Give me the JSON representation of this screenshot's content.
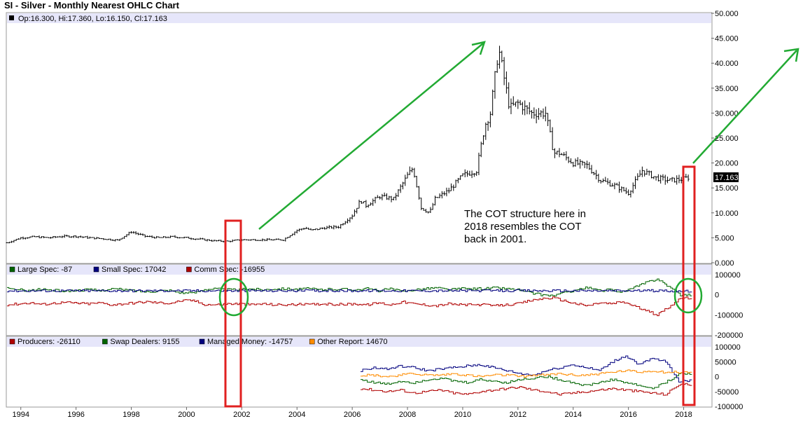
{
  "title": "SI - Silver - Monthly Nearest OHLC Chart",
  "annotation": "The COT structure here in 2018 resembles the COT back in 2001.",
  "chart_data": [
    {
      "type": "ohlc",
      "header": "Op:16.300, Hi:17.360, Lo:16.150, Cl:17.163",
      "last_value_label": "17.163",
      "x_ticks": [
        "1994",
        "1996",
        "1998",
        "2000",
        "2002",
        "2004",
        "2006",
        "2008",
        "2010",
        "2012",
        "2014",
        "2016",
        "2018"
      ],
      "y_ticks": [
        "0.000",
        "5.000",
        "10.000",
        "15.000",
        "20.000",
        "25.000",
        "30.000",
        "35.000",
        "40.000",
        "45.000",
        "50.000"
      ],
      "ylim": [
        0,
        50
      ],
      "xlim": [
        1993.5,
        2019.0
      ],
      "x": [
        1993.5,
        1994.0,
        1994.5,
        1995.0,
        1995.5,
        1996.0,
        1996.5,
        1997.0,
        1997.5,
        1998.0,
        1998.5,
        1999.0,
        1999.5,
        2000.0,
        2000.5,
        2001.0,
        2001.5,
        2002.0,
        2002.5,
        2003.0,
        2003.5,
        2004.0,
        2004.3,
        2004.5,
        2005.0,
        2005.5,
        2006.0,
        2006.3,
        2006.5,
        2007.0,
        2007.5,
        2008.0,
        2008.2,
        2008.5,
        2008.8,
        2009.0,
        2009.5,
        2010.0,
        2010.5,
        2010.8,
        2011.0,
        2011.3,
        2011.5,
        2011.7,
        2012.0,
        2012.5,
        2013.0,
        2013.3,
        2013.5,
        2014.0,
        2014.5,
        2015.0,
        2015.5,
        2016.0,
        2016.5,
        2017.0,
        2017.5,
        2018.0,
        2018.2
      ],
      "close": [
        4.0,
        5.0,
        5.2,
        5.0,
        5.3,
        5.3,
        5.0,
        4.8,
        4.5,
        6.2,
        5.3,
        5.0,
        5.2,
        5.0,
        4.7,
        4.4,
        4.3,
        4.6,
        4.6,
        4.6,
        4.6,
        6.5,
        7.0,
        6.5,
        7.0,
        7.2,
        9.5,
        12.5,
        11.5,
        13.3,
        12.8,
        17.5,
        19.0,
        11.0,
        10.0,
        12.8,
        14.5,
        17.5,
        18.5,
        27.5,
        30.0,
        43.0,
        37.0,
        31.0,
        32.0,
        30.0,
        30.0,
        22.0,
        22.0,
        20.0,
        19.5,
        16.5,
        15.5,
        14.0,
        18.5,
        17.0,
        16.5,
        16.8,
        17.163
      ],
      "cot_legacy": {
        "ylim": [
          -200000,
          100000
        ],
        "y_ticks": [
          "100000",
          "0",
          "-100000",
          "-200000"
        ],
        "series": [
          {
            "name": "Large Spec: -87",
            "color": "#006400",
            "values": [
              30000,
              25000,
              20000,
              28000,
              22000,
              18000,
              22000,
              25000,
              20000,
              30000,
              25000,
              20000,
              15000,
              20000,
              22000,
              10000,
              8000,
              28000,
              30000,
              25000,
              25000,
              30000,
              25000,
              30000,
              30000,
              28000,
              30000,
              25000,
              28000,
              28000,
              25000,
              30000,
              20000,
              30000,
              15000,
              25000,
              30000,
              35000,
              25000,
              30000,
              30000,
              30000,
              35000,
              30000,
              25000,
              10000,
              0,
              -5000,
              10000,
              25000,
              35000,
              20000,
              25000,
              15000,
              35000,
              60000,
              80000,
              40000,
              -87
            ]
          },
          {
            "name": "Small Spec: 17042",
            "color": "#00007f",
            "values": [
              20000,
              20000,
              20000,
              20000,
              20000,
              20000,
              20000,
              20000,
              20000,
              20000,
              20000,
              20000,
              20000,
              20000,
              20000,
              20000,
              20000,
              20000,
              20000,
              20000,
              20000,
              20000,
              20000,
              20000,
              20000,
              20000,
              20000,
              20000,
              20000,
              20000,
              20000,
              20000,
              20000,
              20000,
              20000,
              20000,
              20000,
              20000,
              20000,
              20000,
              20000,
              20000,
              20000,
              20000,
              20000,
              20000,
              20000,
              20000,
              20000,
              20000,
              20000,
              20000,
              20000,
              20000,
              20000,
              20000,
              20000,
              20000,
              17042
            ]
          },
          {
            "name": "Comm Spec: -16955",
            "color": "#b00000",
            "values": [
              -50000,
              -45000,
              -40000,
              -48000,
              -42000,
              -38000,
              -42000,
              -45000,
              -40000,
              -50000,
              -45000,
              -40000,
              -35000,
              -40000,
              -42000,
              -30000,
              -28000,
              -48000,
              -50000,
              -45000,
              -45000,
              -50000,
              -45000,
              -50000,
              -50000,
              -48000,
              -50000,
              -45000,
              -48000,
              -48000,
              -45000,
              -50000,
              -40000,
              -50000,
              -35000,
              -45000,
              -50000,
              -55000,
              -45000,
              -50000,
              -50000,
              -50000,
              -55000,
              -50000,
              -45000,
              -30000,
              -20000,
              -15000,
              -30000,
              -45000,
              -55000,
              -40000,
              -45000,
              -35000,
              -55000,
              -80000,
              -100000,
              -60000,
              -16955
            ]
          }
        ]
      },
      "cot_disaggregated": {
        "ylim": [
          -100000,
          100000
        ],
        "y_ticks": [
          "100000",
          "50000",
          "0",
          "-50000",
          "-100000"
        ],
        "start_year": 2006.3,
        "series": [
          {
            "name": "Producers: -26110",
            "color": "#b00000",
            "values": [
              -40000,
              -45000,
              -50000,
              -45000,
              -55000,
              -50000,
              -45000,
              -55000,
              -60000,
              -50000,
              -45000,
              -40000,
              -35000,
              -45000,
              -50000,
              -60000,
              -55000,
              -50000,
              -45000,
              -40000,
              -45000,
              -50000,
              -55000,
              -60000,
              -26110
            ]
          },
          {
            "name": "Swap Dealers: 9155",
            "color": "#006400",
            "values": [
              -10000,
              -20000,
              -25000,
              -15000,
              -20000,
              -10000,
              -5000,
              -15000,
              -20000,
              -10000,
              -15000,
              -20000,
              -10000,
              -5000,
              0,
              -10000,
              -20000,
              -30000,
              -20000,
              -10000,
              -20000,
              -30000,
              -40000,
              -20000,
              9155
            ]
          },
          {
            "name": "Managed Money: -14757",
            "color": "#00007f",
            "values": [
              20000,
              30000,
              25000,
              35000,
              30000,
              20000,
              25000,
              30000,
              35000,
              40000,
              30000,
              20000,
              10000,
              5000,
              20000,
              30000,
              40000,
              30000,
              20000,
              50000,
              70000,
              40000,
              60000,
              50000,
              -14757
            ]
          },
          {
            "name": "Other Report: 14670",
            "color": "#ff8c00",
            "values": [
              5000,
              5000,
              0,
              5000,
              10000,
              5000,
              5000,
              10000,
              5000,
              0,
              5000,
              5000,
              0,
              5000,
              5000,
              10000,
              5000,
              5000,
              10000,
              15000,
              20000,
              15000,
              20000,
              15000,
              14670
            ]
          }
        ]
      }
    }
  ]
}
